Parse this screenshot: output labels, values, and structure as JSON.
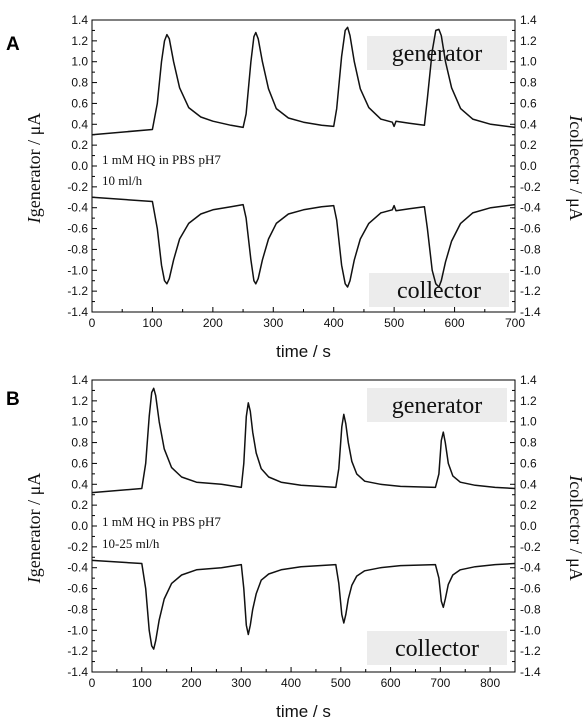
{
  "chart_data": [
    {
      "type": "line",
      "panel": "A",
      "xlabel": "time / s",
      "ylabel_left": {
        "italic": "I",
        "rest": "generator / μA"
      },
      "ylabel_right": {
        "italic": "I",
        "rest": "collector / μA"
      },
      "xlim": [
        0,
        700
      ],
      "ylim": [
        -1.4,
        1.4
      ],
      "xticks": [
        "0",
        "100",
        "200",
        "300",
        "400",
        "500",
        "600",
        "700"
      ],
      "yticks": [
        "-1.4",
        "-1.2",
        "-1.0",
        "-0.8",
        "-0.6",
        "-0.4",
        "-0.2",
        "0.0",
        "0.2",
        "0.4",
        "0.6",
        "0.8",
        "1.0",
        "1.2",
        "1.4"
      ],
      "annotations": [
        "1 mM HQ in PBS pH7",
        "10 ml/h"
      ],
      "labels": {
        "top": "generator",
        "bottom": "collector"
      },
      "series": [
        {
          "x": [
            0,
            100,
            108,
            115,
            120,
            124,
            128,
            135,
            145,
            160,
            180,
            200,
            230,
            250,
            255,
            263,
            268,
            271,
            275,
            282,
            292,
            305,
            325,
            350,
            380,
            400,
            405,
            413,
            419,
            423,
            427,
            434,
            444,
            458,
            478,
            497,
            500,
            503,
            525,
            550,
            555,
            563,
            569,
            574,
            578,
            585,
            595,
            610,
            630,
            660,
            700
          ],
          "y": [
            0.3,
            0.35,
            0.6,
            1.0,
            1.2,
            1.26,
            1.22,
            1.0,
            0.75,
            0.56,
            0.47,
            0.43,
            0.39,
            0.37,
            0.5,
            1.0,
            1.24,
            1.28,
            1.22,
            1.0,
            0.74,
            0.55,
            0.46,
            0.42,
            0.39,
            0.38,
            0.55,
            1.05,
            1.3,
            1.33,
            1.25,
            1.0,
            0.74,
            0.56,
            0.45,
            0.42,
            0.38,
            0.43,
            0.41,
            0.39,
            0.65,
            1.1,
            1.3,
            1.31,
            1.25,
            1.0,
            0.75,
            0.55,
            0.45,
            0.4,
            0.37
          ]
        },
        {
          "x": [
            0,
            100,
            108,
            115,
            120,
            124,
            128,
            135,
            145,
            160,
            180,
            200,
            230,
            250,
            255,
            263,
            268,
            271,
            275,
            282,
            292,
            305,
            325,
            350,
            380,
            400,
            405,
            413,
            419,
            423,
            427,
            434,
            444,
            458,
            478,
            497,
            500,
            503,
            525,
            550,
            555,
            563,
            569,
            574,
            578,
            585,
            595,
            610,
            630,
            660,
            700
          ],
          "y": [
            -0.3,
            -0.34,
            -0.6,
            -0.95,
            -1.1,
            -1.13,
            -1.08,
            -0.9,
            -0.7,
            -0.55,
            -0.46,
            -0.42,
            -0.39,
            -0.37,
            -0.5,
            -0.9,
            -1.1,
            -1.13,
            -1.08,
            -0.9,
            -0.7,
            -0.55,
            -0.46,
            -0.42,
            -0.39,
            -0.38,
            -0.52,
            -0.95,
            -1.13,
            -1.16,
            -1.1,
            -0.9,
            -0.7,
            -0.55,
            -0.45,
            -0.42,
            -0.38,
            -0.43,
            -0.41,
            -0.39,
            -0.6,
            -1.0,
            -1.13,
            -1.16,
            -1.1,
            -0.92,
            -0.72,
            -0.55,
            -0.45,
            -0.4,
            -0.37
          ]
        }
      ]
    },
    {
      "type": "line",
      "panel": "B",
      "xlabel": "time / s",
      "ylabel_left": {
        "italic": "I",
        "rest": "generator / μA"
      },
      "ylabel_right": {
        "italic": "I",
        "rest": "collector / μA"
      },
      "xlim": [
        0,
        850
      ],
      "ylim": [
        -1.4,
        1.4
      ],
      "xticks": [
        "0",
        "100",
        "200",
        "300",
        "400",
        "500",
        "600",
        "700",
        "800"
      ],
      "yticks": [
        "-1.4",
        "-1.2",
        "-1.0",
        "-0.8",
        "-0.6",
        "-0.4",
        "-0.2",
        "0.0",
        "0.2",
        "0.4",
        "0.6",
        "0.8",
        "1.0",
        "1.2",
        "1.4"
      ],
      "annotations": [
        "1 mM HQ in PBS pH7",
        "10-25 ml/h"
      ],
      "labels": {
        "top": "generator",
        "bottom": "collector"
      },
      "series": [
        {
          "x": [
            0,
            100,
            108,
            115,
            120,
            124,
            128,
            135,
            145,
            160,
            180,
            210,
            260,
            300,
            305,
            310,
            314,
            318,
            323,
            330,
            340,
            355,
            380,
            420,
            490,
            496,
            502,
            506,
            510,
            515,
            522,
            532,
            548,
            580,
            620,
            690,
            697,
            702,
            706,
            710,
            716,
            725,
            740,
            770,
            810,
            850
          ],
          "y": [
            0.32,
            0.36,
            0.6,
            1.05,
            1.28,
            1.32,
            1.25,
            1.0,
            0.74,
            0.56,
            0.47,
            0.42,
            0.4,
            0.37,
            0.6,
            1.05,
            1.18,
            1.1,
            0.9,
            0.7,
            0.55,
            0.47,
            0.42,
            0.39,
            0.37,
            0.55,
            0.95,
            1.07,
            0.98,
            0.8,
            0.62,
            0.5,
            0.43,
            0.4,
            0.38,
            0.37,
            0.5,
            0.82,
            0.9,
            0.8,
            0.6,
            0.48,
            0.42,
            0.39,
            0.37,
            0.36
          ]
        },
        {
          "x": [
            0,
            100,
            108,
            115,
            120,
            124,
            128,
            135,
            145,
            160,
            180,
            210,
            260,
            300,
            305,
            310,
            314,
            318,
            323,
            330,
            340,
            355,
            380,
            420,
            490,
            496,
            502,
            506,
            510,
            515,
            522,
            532,
            548,
            580,
            620,
            690,
            697,
            702,
            706,
            710,
            716,
            725,
            740,
            770,
            810,
            850
          ],
          "y": [
            -0.33,
            -0.36,
            -0.6,
            -1.0,
            -1.15,
            -1.18,
            -1.1,
            -0.9,
            -0.7,
            -0.55,
            -0.47,
            -0.42,
            -0.4,
            -0.37,
            -0.6,
            -0.95,
            -1.04,
            -0.95,
            -0.8,
            -0.65,
            -0.52,
            -0.46,
            -0.42,
            -0.39,
            -0.37,
            -0.55,
            -0.85,
            -0.93,
            -0.85,
            -0.7,
            -0.57,
            -0.48,
            -0.43,
            -0.4,
            -0.38,
            -0.37,
            -0.5,
            -0.72,
            -0.78,
            -0.7,
            -0.56,
            -0.47,
            -0.42,
            -0.39,
            -0.37,
            -0.36
          ]
        }
      ]
    }
  ]
}
